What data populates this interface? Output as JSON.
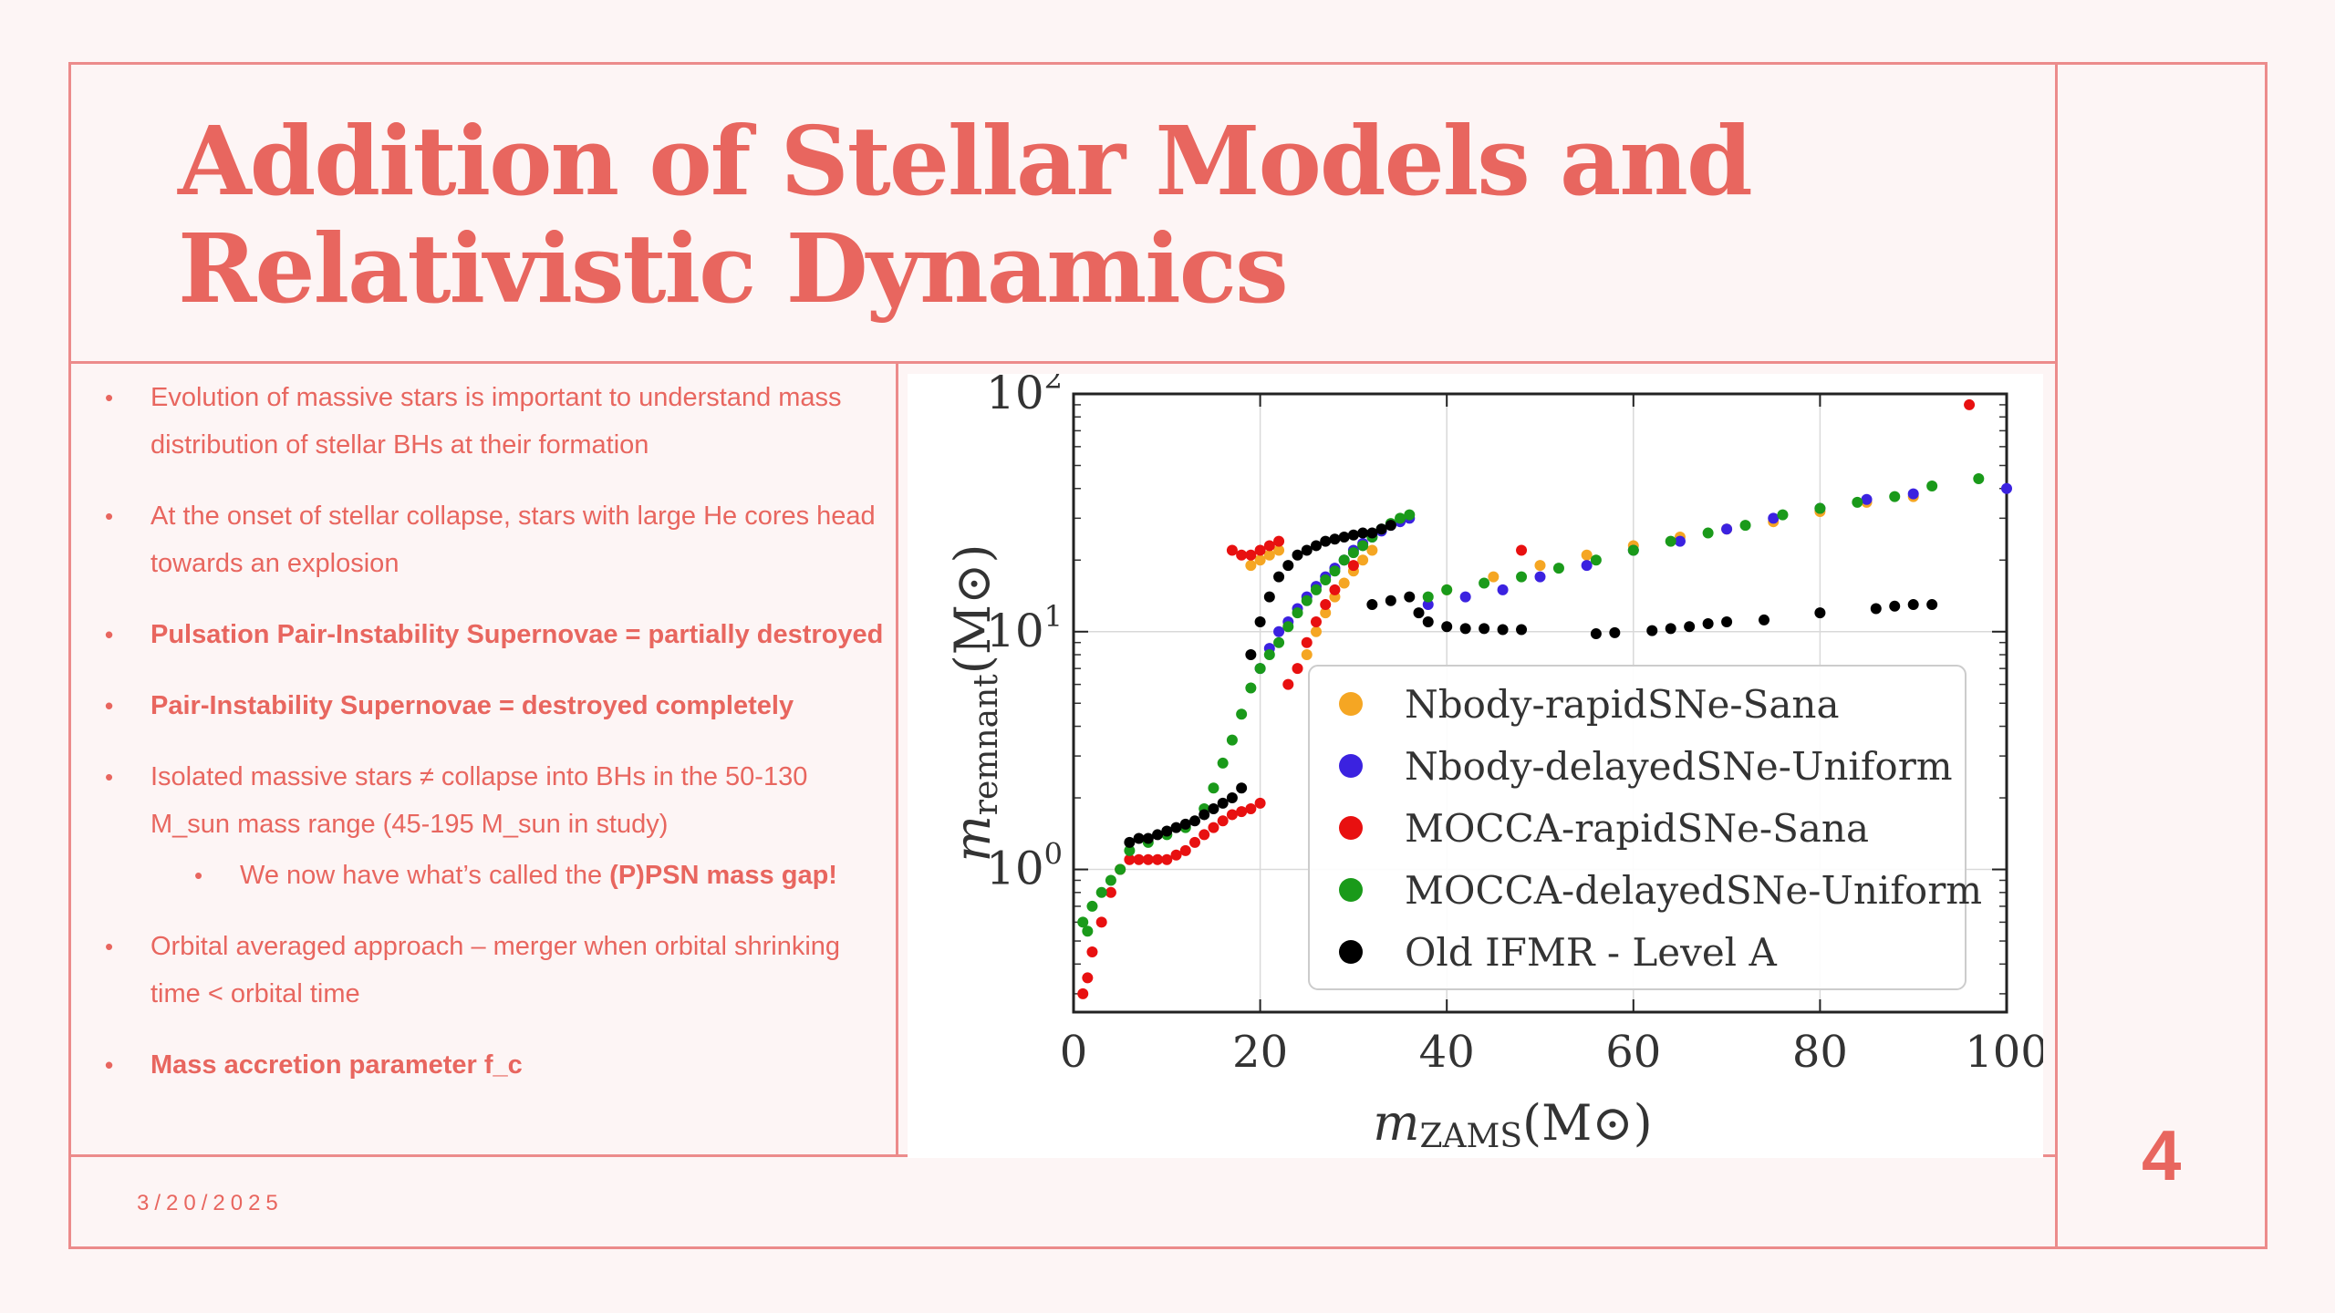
{
  "slide": {
    "title_lines": [
      "Addition of Stellar Models and",
      "Relativistic Dynamics"
    ],
    "bullets": [
      {
        "text": "Evolution of massive stars is important to understand mass distribution of stellar BHs at their formation",
        "bold": false
      },
      {
        "text": "At the onset of stellar collapse, stars with large He cores head towards an explosion",
        "bold": false
      },
      {
        "text": "Pulsation Pair-Instability Supernovae = partially destroyed",
        "bold": true
      },
      {
        "text": "Pair-Instability Supernovae = destroyed completely",
        "bold": true
      },
      {
        "text": "Isolated massive stars ≠ collapse into BHs in the 50-130 M_sun mass range (45-195 M_sun in study)",
        "bold": false
      },
      {
        "text_before": "We now have what’s called the ",
        "text_bold": "(P)PSN mass gap!",
        "sub": true
      },
      {
        "text": "Orbital averaged approach – merger when orbital shrinking time < orbital time",
        "bold": false
      },
      {
        "text": "Mass accretion parameter f_c",
        "bold": true
      }
    ],
    "date": "3/20/2025",
    "page_number": "4",
    "accent_color": "#e8665f",
    "border_color": "#ec8b8b"
  },
  "chart_data": {
    "type": "scatter",
    "xlim": [
      0,
      100
    ],
    "ylim_log10": [
      -0.6,
      2
    ],
    "x_scale": "linear",
    "y_scale": "log",
    "grid": true,
    "legend_position": "lower-right",
    "x_ticks": [
      "0",
      "20",
      "40",
      "60",
      "80",
      "100"
    ],
    "y_ticks": [
      {
        "value": 1,
        "base": "10",
        "exp": "0"
      },
      {
        "value": 10,
        "base": "10",
        "exp": "1"
      },
      {
        "value": 100,
        "base": "10",
        "exp": "2"
      }
    ],
    "xlabel": {
      "main": "m",
      "sub": "ZAMS",
      "unit": "(M",
      "unit_end": ")"
    },
    "ylabel": {
      "main": "m",
      "sub": "remnant",
      "unit": "(M",
      "unit_end": ")"
    },
    "series": [
      {
        "name": "Nbody-rapidSNe-Sana",
        "color": "#f5a623",
        "points": [
          [
            19,
            19
          ],
          [
            20,
            20
          ],
          [
            21,
            21
          ],
          [
            22,
            22
          ],
          [
            25,
            8
          ],
          [
            26,
            10
          ],
          [
            27,
            12
          ],
          [
            28,
            14
          ],
          [
            29,
            16
          ],
          [
            30,
            18
          ],
          [
            31,
            20
          ],
          [
            32,
            22
          ],
          [
            40,
            15
          ],
          [
            45,
            17
          ],
          [
            50,
            19
          ],
          [
            55,
            21
          ],
          [
            60,
            23
          ],
          [
            65,
            25
          ],
          [
            70,
            27
          ],
          [
            75,
            29
          ],
          [
            80,
            32
          ],
          [
            85,
            35
          ],
          [
            90,
            37
          ]
        ]
      },
      {
        "name": "Nbody-delayedSNe-Uniform",
        "color": "#3b22e0",
        "points": [
          [
            20,
            7
          ],
          [
            21,
            8.5
          ],
          [
            22,
            10
          ],
          [
            23,
            11
          ],
          [
            24,
            12.5
          ],
          [
            25,
            14
          ],
          [
            26,
            15.5
          ],
          [
            27,
            17
          ],
          [
            28,
            18.5
          ],
          [
            29,
            20
          ],
          [
            30,
            22
          ],
          [
            31,
            23.5
          ],
          [
            32,
            25
          ],
          [
            33,
            26.5
          ],
          [
            34,
            28
          ],
          [
            35,
            29
          ],
          [
            36,
            30
          ],
          [
            38,
            13
          ],
          [
            42,
            14
          ],
          [
            46,
            15
          ],
          [
            50,
            17
          ],
          [
            55,
            19
          ],
          [
            60,
            22
          ],
          [
            65,
            24
          ],
          [
            70,
            27
          ],
          [
            75,
            30
          ],
          [
            80,
            33
          ],
          [
            85,
            36
          ],
          [
            90,
            38
          ],
          [
            100,
            40
          ]
        ]
      },
      {
        "name": "MOCCA-rapidSNe-Sana",
        "color": "#e81010",
        "points": [
          [
            1,
            0.3
          ],
          [
            1.5,
            0.35
          ],
          [
            2,
            0.45
          ],
          [
            3,
            0.6
          ],
          [
            4,
            0.8
          ],
          [
            5,
            1.0
          ],
          [
            6,
            1.1
          ],
          [
            7,
            1.1
          ],
          [
            8,
            1.1
          ],
          [
            9,
            1.1
          ],
          [
            10,
            1.1
          ],
          [
            11,
            1.15
          ],
          [
            12,
            1.2
          ],
          [
            13,
            1.3
          ],
          [
            14,
            1.4
          ],
          [
            15,
            1.5
          ],
          [
            16,
            1.6
          ],
          [
            17,
            1.7
          ],
          [
            18,
            1.75
          ],
          [
            19,
            1.8
          ],
          [
            20,
            1.9
          ],
          [
            17,
            22
          ],
          [
            18,
            21
          ],
          [
            19,
            21
          ],
          [
            20,
            22
          ],
          [
            21,
            23
          ],
          [
            22,
            24
          ],
          [
            23,
            6
          ],
          [
            24,
            7
          ],
          [
            25,
            9
          ],
          [
            26,
            11
          ],
          [
            27,
            13
          ],
          [
            28,
            15
          ],
          [
            30,
            19
          ],
          [
            48,
            22
          ],
          [
            96,
            90
          ]
        ]
      },
      {
        "name": "MOCCA-delayedSNe-Uniform",
        "color": "#1a9a1a",
        "points": [
          [
            1,
            0.6
          ],
          [
            1.5,
            0.55
          ],
          [
            2,
            0.7
          ],
          [
            3,
            0.8
          ],
          [
            4,
            0.9
          ],
          [
            5,
            1.0
          ],
          [
            6,
            1.2
          ],
          [
            8,
            1.3
          ],
          [
            10,
            1.4
          ],
          [
            12,
            1.5
          ],
          [
            14,
            1.8
          ],
          [
            15,
            2.2
          ],
          [
            16,
            2.8
          ],
          [
            17,
            3.5
          ],
          [
            18,
            4.5
          ],
          [
            19,
            5.8
          ],
          [
            20,
            7
          ],
          [
            21,
            8
          ],
          [
            22,
            9
          ],
          [
            23,
            10.5
          ],
          [
            24,
            12
          ],
          [
            25,
            13.5
          ],
          [
            26,
            15
          ],
          [
            27,
            16.5
          ],
          [
            28,
            18
          ],
          [
            29,
            20
          ],
          [
            30,
            21.5
          ],
          [
            31,
            23
          ],
          [
            32,
            25
          ],
          [
            33,
            27
          ],
          [
            34,
            28.5
          ],
          [
            35,
            30
          ],
          [
            36,
            31
          ],
          [
            38,
            14
          ],
          [
            40,
            15
          ],
          [
            44,
            16
          ],
          [
            48,
            17
          ],
          [
            52,
            18.5
          ],
          [
            56,
            20
          ],
          [
            60,
            22
          ],
          [
            64,
            24
          ],
          [
            68,
            26
          ],
          [
            72,
            28
          ],
          [
            76,
            31
          ],
          [
            80,
            33
          ],
          [
            84,
            35
          ],
          [
            88,
            37
          ],
          [
            92,
            41
          ],
          [
            97,
            44
          ]
        ]
      },
      {
        "name": "Old IFMR - Level A",
        "color": "#000000",
        "points": [
          [
            6,
            1.3
          ],
          [
            7,
            1.35
          ],
          [
            8,
            1.35
          ],
          [
            9,
            1.4
          ],
          [
            10,
            1.45
          ],
          [
            11,
            1.5
          ],
          [
            12,
            1.55
          ],
          [
            13,
            1.6
          ],
          [
            14,
            1.7
          ],
          [
            15,
            1.8
          ],
          [
            16,
            1.9
          ],
          [
            17,
            2.0
          ],
          [
            18,
            2.2
          ],
          [
            19,
            8
          ],
          [
            20,
            11
          ],
          [
            21,
            14
          ],
          [
            22,
            17
          ],
          [
            23,
            19
          ],
          [
            24,
            21
          ],
          [
            25,
            22
          ],
          [
            26,
            23
          ],
          [
            27,
            24
          ],
          [
            28,
            24.5
          ],
          [
            29,
            25
          ],
          [
            30,
            25.5
          ],
          [
            31,
            26
          ],
          [
            32,
            26
          ],
          [
            33,
            27
          ],
          [
            34,
            28
          ],
          [
            32,
            13
          ],
          [
            34,
            13.5
          ],
          [
            36,
            14
          ],
          [
            37,
            12
          ],
          [
            38,
            11
          ],
          [
            40,
            10.5
          ],
          [
            42,
            10.3
          ],
          [
            44,
            10.3
          ],
          [
            46,
            10.2
          ],
          [
            48,
            10.2
          ],
          [
            56,
            9.8
          ],
          [
            58,
            9.9
          ],
          [
            62,
            10.1
          ],
          [
            64,
            10.3
          ],
          [
            66,
            10.5
          ],
          [
            68,
            10.8
          ],
          [
            70,
            11
          ],
          [
            74,
            11.2
          ],
          [
            80,
            12
          ],
          [
            86,
            12.5
          ],
          [
            88,
            12.8
          ],
          [
            90,
            13
          ],
          [
            92,
            13
          ]
        ]
      }
    ]
  }
}
